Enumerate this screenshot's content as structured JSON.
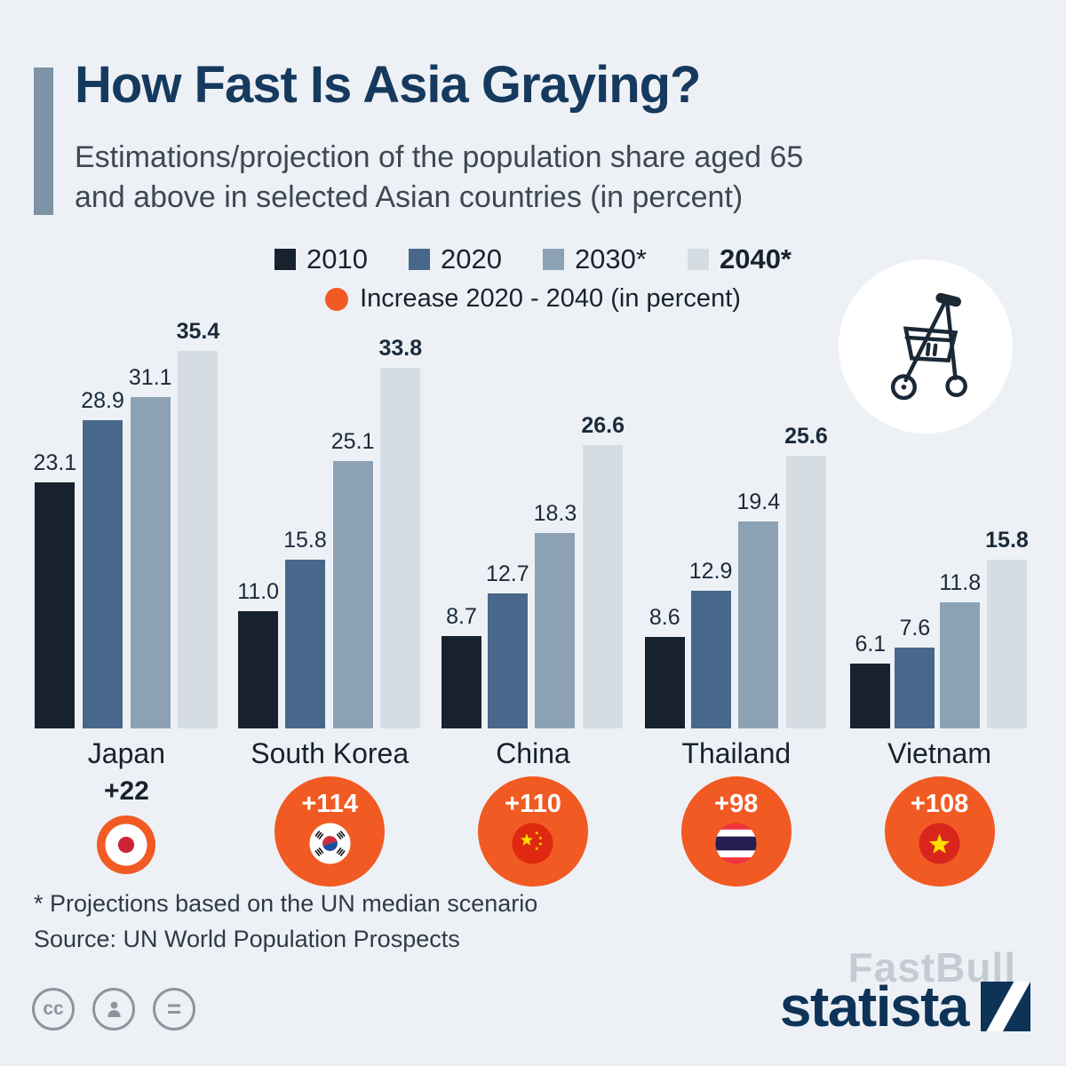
{
  "header": {
    "title": "How Fast Is Asia Graying?",
    "subtitle_lines": [
      "Estimations/projection of the population share aged 65",
      "and above in selected Asian countries (in percent)"
    ]
  },
  "legend": {
    "items": [
      {
        "label": "2010",
        "color": "#18222e",
        "bold": false
      },
      {
        "label": "2020",
        "color": "#47688a",
        "bold": false
      },
      {
        "label": "2030*",
        "color": "#8ca2b4",
        "bold": false
      },
      {
        "label": "2040*",
        "color": "#d5dde3",
        "bold": true
      }
    ],
    "increase_label": "Increase 2020 - 2040 (in percent)",
    "increase_color": "#f15a22"
  },
  "chart_data": {
    "type": "bar",
    "title": "How Fast Is Asia Graying?",
    "unit": "percent",
    "ylim": [
      0,
      36
    ],
    "grid": false,
    "value_labels": true,
    "categories": [
      "Japan",
      "South Korea",
      "China",
      "Thailand",
      "Vietnam"
    ],
    "series": [
      {
        "name": "2010",
        "color": "#18222e",
        "values": [
          23.1,
          11.0,
          8.7,
          8.6,
          6.1
        ]
      },
      {
        "name": "2020",
        "color": "#47688a",
        "values": [
          28.9,
          15.8,
          12.7,
          12.9,
          7.6
        ]
      },
      {
        "name": "2030*",
        "color": "#8ca2b4",
        "values": [
          31.1,
          25.1,
          18.3,
          19.4,
          11.8
        ]
      },
      {
        "name": "2040*",
        "color": "#d5dde3",
        "values": [
          35.4,
          33.8,
          26.6,
          25.6,
          15.8
        ]
      }
    ],
    "increase_2020_2040": [
      {
        "country": "Japan",
        "label": "+22",
        "flag": "japan",
        "badge_size": "small"
      },
      {
        "country": "South Korea",
        "label": "+114",
        "flag": "south-korea",
        "badge_size": "large"
      },
      {
        "country": "China",
        "label": "+110",
        "flag": "china",
        "badge_size": "large"
      },
      {
        "country": "Thailand",
        "label": "+98",
        "flag": "thailand",
        "badge_size": "large"
      },
      {
        "country": "Vietnam",
        "label": "+108",
        "flag": "vietnam",
        "badge_size": "large"
      }
    ]
  },
  "icons": {
    "top_right": "rollator-walker-icon",
    "footer_left": [
      "creative-commons-icon",
      "attribution-person-icon",
      "no-derivatives-equals-icon"
    ]
  },
  "footer": {
    "note": "* Projections based on the UN median scenario",
    "source": "Source: UN World Population Prospects",
    "cc_label": "cc",
    "equals_label": "=",
    "brand": "statista",
    "watermark": "FastBull"
  }
}
